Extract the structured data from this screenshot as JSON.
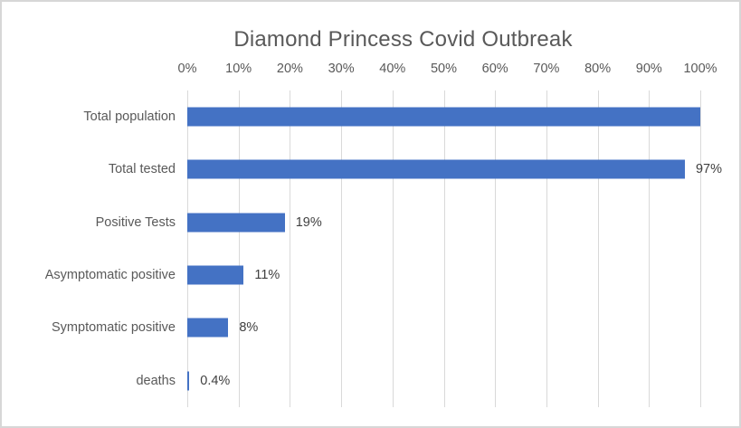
{
  "chart_data": {
    "type": "bar",
    "orientation": "horizontal",
    "title": "Diamond Princess Covid Outbreak",
    "categories": [
      "Total population",
      "Total tested",
      "Positive Tests",
      "Asymptomatic positive",
      "Symptomatic positive",
      "deaths"
    ],
    "values": [
      100,
      97,
      19,
      11,
      8,
      0.4
    ],
    "data_labels": [
      "",
      "97%",
      "19%",
      "11%",
      "8%",
      "0.4%"
    ],
    "x_ticks": [
      "0%",
      "10%",
      "20%",
      "30%",
      "40%",
      "50%",
      "60%",
      "70%",
      "80%",
      "90%",
      "100%"
    ],
    "xlabel": "",
    "ylabel": "",
    "xlim": [
      0,
      100
    ],
    "axis_position": "top",
    "grid": "vertical-gridlines-on",
    "legend": "none",
    "colors": {
      "bar": "#4472C4",
      "gridline": "#D9D9D9",
      "title_text": "#595959",
      "axis_text": "#595959",
      "data_label_text": "#404040",
      "frame_border": "#D7D7D7",
      "background": "#FFFFFF"
    }
  }
}
